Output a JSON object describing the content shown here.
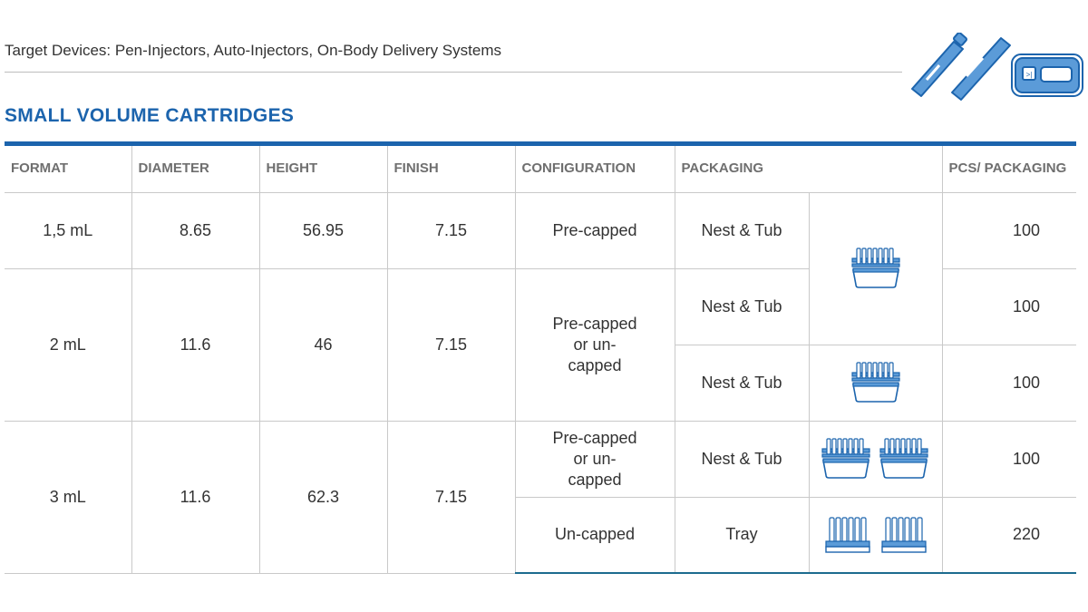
{
  "header": {
    "subtitle": "Target Devices: Pen-Injectors, Auto-Injectors, On-Body Delivery Systems",
    "section_title": "SMALL VOLUME CARTRIDGES",
    "device_icons": [
      "pen-injector-icon",
      "auto-injector-icon",
      "on-body-delivery-icon"
    ]
  },
  "colors": {
    "accent": "#1c64ad",
    "icon_blue": "#5b9bd8",
    "header_text": "#6f6f6f"
  },
  "table": {
    "columns": [
      "FORMAT",
      "DIAMETER",
      "HEIGHT",
      "FINISH",
      "CONFIGURATION",
      "PACKAGING",
      "PCS/ PACKAGING"
    ],
    "rows": [
      {
        "format": "1,5 mL",
        "diameter": "8.65",
        "height": "56.95",
        "finish": "7.15",
        "configuration": "Pre-capped",
        "packaging": "Nest & Tub",
        "pcs": "100",
        "icon": "nest-tub-icon"
      },
      {
        "format": "2 mL",
        "diameter": "11.6",
        "height": "46",
        "finish": "7.15",
        "configuration": "Pre-capped or un-capped",
        "packaging": "Nest & Tub",
        "pcs": "100",
        "icon": "nest-tub-icon"
      },
      {
        "packaging": "Nest & Tub",
        "pcs": "100",
        "icon": "nest-tub-icon"
      },
      {
        "format": "3 mL",
        "diameter": "11.6",
        "height": "62.3",
        "finish": "7.15",
        "configuration": "Pre-capped or un-capped",
        "packaging": "Nest & Tub",
        "pcs": "100",
        "icon": "nest-tub-pair-icon"
      },
      {
        "configuration": "Un-capped",
        "packaging": "Tray",
        "pcs": "220",
        "icon": "tray-pair-icon"
      }
    ]
  }
}
